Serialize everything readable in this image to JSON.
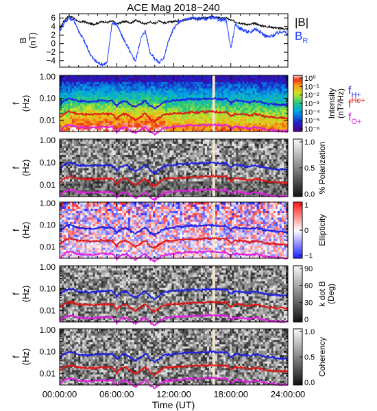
{
  "chart_data": {
    "type": "line",
    "title": "ACE Mag 2018−240",
    "xlabel": "Time (UT)",
    "x_ticks": [
      "00:00:00",
      "06:00:00",
      "12:00:00",
      "18:00:00",
      "24:00:00"
    ],
    "xlim_hours": [
      0,
      24
    ],
    "legend_top": [
      "|B|",
      "B"
    ],
    "legend_top_sub": "R",
    "legend_top_colors": [
      "#000000",
      "#2040ff"
    ],
    "top_panel": {
      "ylabel": "B",
      "ylabel_unit": "(nT)",
      "y_ticks": [
        "6",
        "4",
        "2",
        "0",
        "−2",
        "−4"
      ],
      "ylim": [
        -5.5,
        7
      ],
      "series": [
        {
          "name": "|B|",
          "color": "#000000",
          "x": [
            0,
            0.5,
            1,
            1.5,
            2,
            2.5,
            3,
            3.5,
            4,
            4.5,
            5,
            5.5,
            6,
            6.5,
            7,
            7.5,
            8,
            8.5,
            9,
            9.5,
            10,
            10.5,
            11,
            11.5,
            12,
            12.5,
            13,
            13.5,
            14,
            14.5,
            15,
            15.5,
            16,
            16.5,
            17,
            17.5,
            18,
            18.5,
            19,
            19.5,
            20,
            20.5,
            21,
            21.5,
            22,
            22.5,
            23,
            23.5,
            24
          ],
          "y": [
            3.5,
            5.5,
            6.5,
            6,
            5,
            5.2,
            4.8,
            4.5,
            4.8,
            5.2,
            4.9,
            5.3,
            4.6,
            5,
            5.2,
            4.8,
            5.5,
            5,
            4.6,
            5.1,
            4.7,
            5.4,
            4.8,
            5,
            5.2,
            5.5,
            5.4,
            5.8,
            6,
            5.7,
            6.1,
            6,
            6.3,
            6.1,
            5.9,
            6,
            5.5,
            5.1,
            4.8,
            4.6,
            4.4,
            4.8,
            4.3,
            4.1,
            3.9,
            3.8,
            3.6,
            3.5,
            3.4
          ]
        },
        {
          "name": "B_R",
          "color": "#2040ff",
          "x": [
            0,
            0.5,
            1,
            1.5,
            2,
            2.5,
            3,
            3.5,
            4,
            4.5,
            5,
            5.5,
            6,
            6.5,
            7,
            7.5,
            8,
            8.5,
            9,
            9.5,
            10,
            10.5,
            11,
            11.5,
            12,
            12.5,
            13,
            13.5,
            14,
            14.5,
            15,
            15.5,
            16,
            16.5,
            17,
            17.5,
            18,
            18.5,
            19,
            19.5,
            20,
            20.5,
            21,
            21.5,
            22,
            22.5,
            23,
            23.5,
            24
          ],
          "y": [
            3,
            5,
            6,
            5.5,
            3,
            1,
            -1.5,
            -3.5,
            -4.5,
            -4.8,
            -4.5,
            4.8,
            4.5,
            2,
            0,
            -2.5,
            -4,
            1,
            3,
            -2,
            -3.5,
            -4.5,
            -3,
            1,
            3.5,
            5,
            5.4,
            5.8,
            6,
            5.7,
            6,
            5.8,
            6.1,
            5.8,
            5.5,
            5.6,
            -1,
            4.5,
            3.5,
            3,
            2.5,
            3.5,
            3,
            2,
            1.5,
            2,
            2.5,
            3,
            2
          ]
        }
      ]
    },
    "spectrogram_panels": [
      {
        "ylabel": "f",
        "ylabel_unit": "(Hz)",
        "y_ticks": [
          "1.00",
          "0.10",
          "0.01"
        ],
        "colorbar_label": "Intensity",
        "colorbar_unit": "(nT²/Hz)",
        "colorbar_ticks": [
          "10⁰",
          "10⁻¹",
          "10⁻²",
          "10⁻³",
          "10⁻⁴",
          "10⁻⁵",
          "10⁻⁶"
        ],
        "colormap": "rainbow"
      },
      {
        "ylabel": "f",
        "ylabel_unit": "(Hz)",
        "y_ticks": [
          "1.00",
          "0.10",
          "0.01"
        ],
        "colorbar_label": "% Polarization",
        "colorbar_unit": "",
        "colorbar_ticks": [
          "1.0",
          "0.5",
          "0.0"
        ],
        "colormap": "gray"
      },
      {
        "ylabel": "f",
        "ylabel_unit": "(Hz)",
        "y_ticks": [
          "1.00",
          "0.10",
          "0.01"
        ],
        "colorbar_label": "Ellipticity",
        "colorbar_unit": "",
        "colorbar_ticks": [
          "1",
          "0",
          "−1"
        ],
        "colormap": "bwr"
      },
      {
        "ylabel": "f",
        "ylabel_unit": "(Hz)",
        "y_ticks": [
          "1.00",
          "0.10",
          "0.01"
        ],
        "colorbar_label": "k dot B",
        "colorbar_unit": "(Deg)",
        "colorbar_ticks": [
          "90",
          "60",
          "30",
          "0"
        ],
        "colormap": "gray"
      },
      {
        "ylabel": "f",
        "ylabel_unit": "(Hz)",
        "y_ticks": [
          "1.00",
          "0.10",
          "0.01"
        ],
        "colorbar_label": "Coherency",
        "colorbar_unit": "",
        "colorbar_ticks": [
          "1.0",
          "0.5",
          "0.0"
        ],
        "colormap": "gray"
      }
    ],
    "gyrofrequency_legend": [
      {
        "label": "f",
        "sup": "",
        "sub": "H+",
        "color": "#2020e0"
      },
      {
        "label": "f",
        "sup": "He+",
        "sub": "",
        "color": "#e02020"
      },
      {
        "label": "f",
        "sup": "",
        "sub": "O+",
        "color": "#e020e0"
      }
    ],
    "gyrofrequency_lines": {
      "x": [
        0,
        0.5,
        1,
        1.5,
        2,
        2.5,
        3,
        3.5,
        4,
        4.5,
        5,
        5.5,
        6,
        6.5,
        7,
        7.5,
        8,
        8.5,
        9,
        9.5,
        10,
        10.5,
        11,
        11.5,
        12,
        12.5,
        13,
        13.5,
        14,
        14.5,
        15,
        15.5,
        16,
        16.5,
        17,
        17.5,
        18,
        18.5,
        19,
        19.5,
        20,
        20.5,
        21,
        21.5,
        22,
        22.5,
        23,
        23.5,
        24
      ],
      "f_H": [
        0.05,
        0.08,
        0.1,
        0.09,
        0.075,
        0.075,
        0.07,
        0.07,
        0.075,
        0.08,
        0.075,
        0.08,
        0.045,
        0.07,
        0.075,
        0.05,
        0.04,
        0.055,
        0.08,
        0.045,
        0.035,
        0.05,
        0.07,
        0.075,
        0.08,
        0.085,
        0.085,
        0.09,
        0.095,
        0.09,
        0.095,
        0.095,
        0.1,
        0.097,
        0.093,
        0.095,
        0.06,
        0.08,
        0.075,
        0.07,
        0.065,
        0.075,
        0.07,
        0.06,
        0.055,
        0.055,
        0.05,
        0.05,
        0.048
      ],
      "f_He": [
        0.013,
        0.02,
        0.025,
        0.022,
        0.019,
        0.019,
        0.018,
        0.018,
        0.019,
        0.02,
        0.019,
        0.02,
        0.011,
        0.018,
        0.019,
        0.013,
        0.01,
        0.014,
        0.02,
        0.011,
        0.009,
        0.013,
        0.018,
        0.019,
        0.02,
        0.021,
        0.021,
        0.022,
        0.024,
        0.022,
        0.024,
        0.024,
        0.025,
        0.024,
        0.023,
        0.024,
        0.015,
        0.02,
        0.019,
        0.018,
        0.016,
        0.019,
        0.018,
        0.015,
        0.014,
        0.014,
        0.013,
        0.013,
        0.012
      ],
      "f_O": [
        0.003,
        0.005,
        0.006,
        0.0055,
        0.0047,
        0.0047,
        0.0044,
        0.0044,
        0.0047,
        0.005,
        0.0047,
        0.005,
        0.0028,
        0.0044,
        0.0047,
        0.0032,
        0.0025,
        0.0035,
        0.005,
        0.0028,
        0.0022,
        0.0032,
        0.0044,
        0.0047,
        0.005,
        0.0053,
        0.0053,
        0.0056,
        0.006,
        0.0056,
        0.006,
        0.006,
        0.0063,
        0.006,
        0.0058,
        0.006,
        0.0038,
        0.005,
        0.0047,
        0.0044,
        0.004,
        0.0047,
        0.0044,
        0.0038,
        0.0034,
        0.0034,
        0.0031,
        0.0031,
        0.003
      ]
    },
    "data_gap_hours": 16.2,
    "grid": false
  }
}
